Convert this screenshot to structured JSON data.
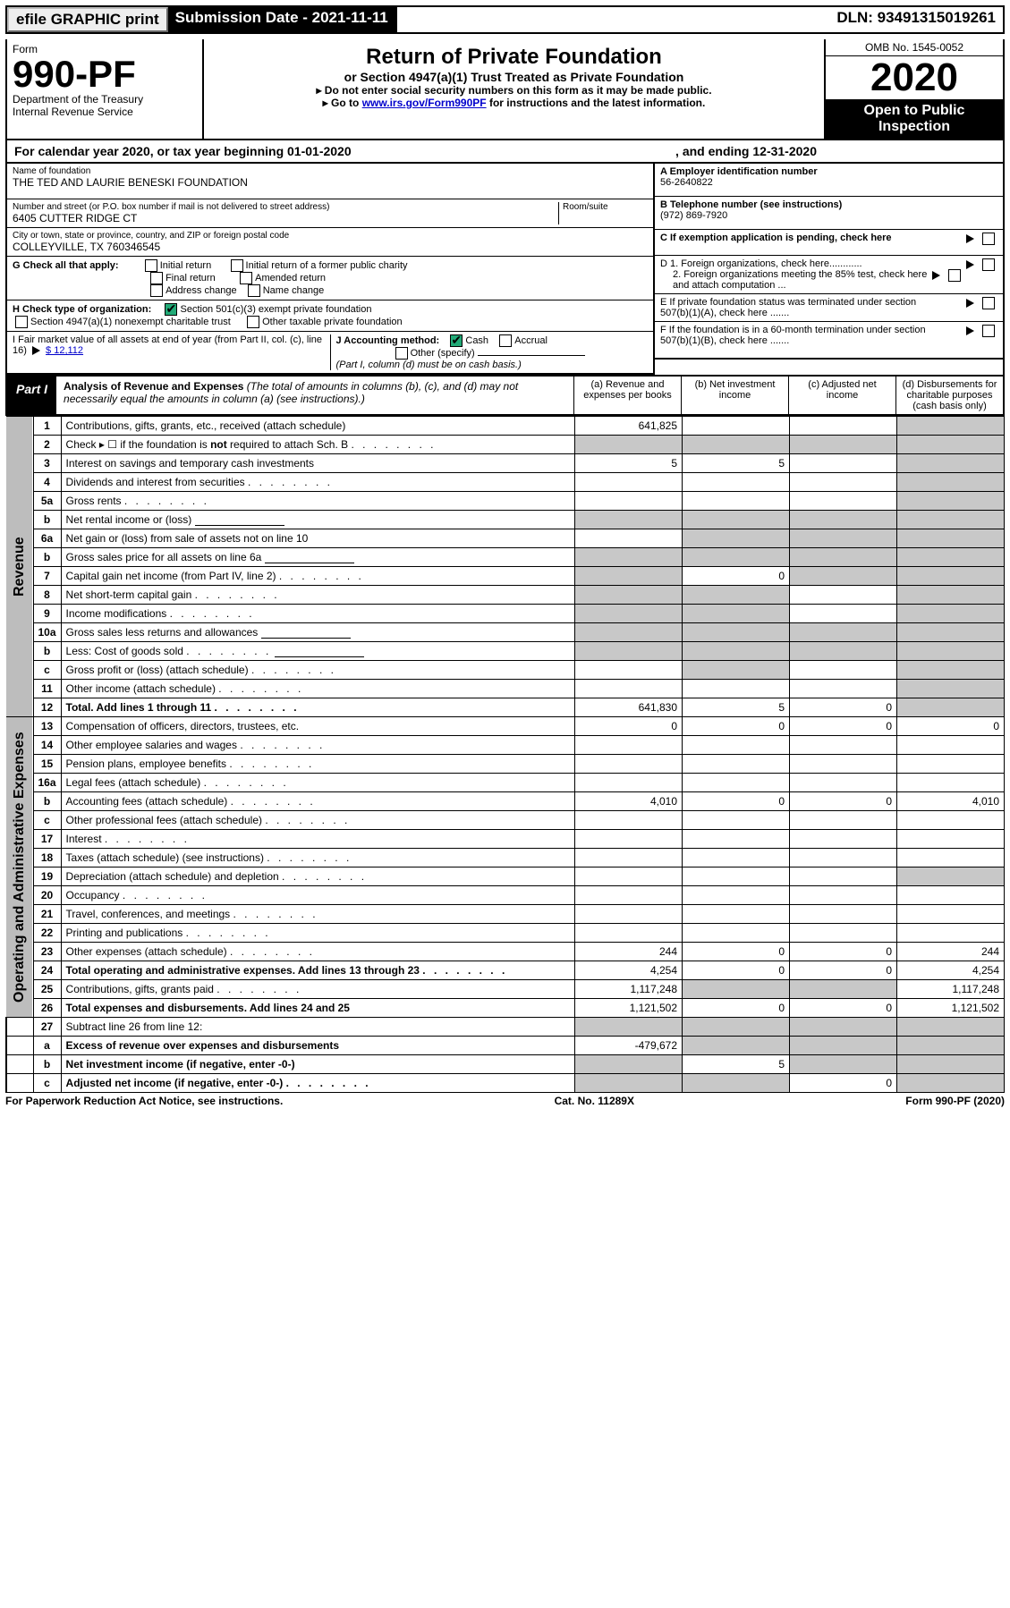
{
  "efile": {
    "label": "efile GRAPHIC print",
    "submission_label": "Submission Date - 2021-11-11",
    "dln_label": "DLN: 93491315019261"
  },
  "header": {
    "form_word": "Form",
    "form_no": "990-PF",
    "dept": "Department of the Treasury",
    "irs": "Internal Revenue Service",
    "title": "Return of Private Foundation",
    "subtitle": "or Section 4947(a)(1) Trust Treated as Private Foundation",
    "note1": "▸ Do not enter social security numbers on this form as it may be made public.",
    "note2_pre": "▸ Go to ",
    "note2_link": "www.irs.gov/Form990PF",
    "note2_post": " for instructions and the latest information.",
    "omb": "OMB No. 1545-0052",
    "year": "2020",
    "open": "Open to Public Inspection"
  },
  "calyear": {
    "text1": "For calendar year 2020, or tax year beginning 01-01-2020",
    "text2": ", and ending 12-31-2020"
  },
  "identity": {
    "name_lbl": "Name of foundation",
    "name_val": "THE TED AND LAURIE BENESKI FOUNDATION",
    "addr_lbl": "Number and street (or P.O. box number if mail is not delivered to street address)",
    "addr_val": "6405 CUTTER RIDGE CT",
    "room_lbl": "Room/suite",
    "city_lbl": "City or town, state or province, country, and ZIP or foreign postal code",
    "city_val": "COLLEYVILLE, TX  760346545",
    "ein_lbl": "A Employer identification number",
    "ein_val": "56-2640822",
    "tel_lbl": "B Telephone number (see instructions)",
    "tel_val": "(972) 869-7920",
    "c_lbl": "C If exemption application is pending, check here",
    "g_lbl": "G Check all that apply:",
    "g_opts": [
      "Initial return",
      "Final return",
      "Address change",
      "Initial return of a former public charity",
      "Amended return",
      "Name change"
    ],
    "h_lbl": "H Check type of organization:",
    "h_opt1": "Section 501(c)(3) exempt private foundation",
    "h_opt2": "Section 4947(a)(1) nonexempt charitable trust",
    "h_opt3": "Other taxable private foundation",
    "i_lbl": "I Fair market value of all assets at end of year (from Part II, col. (c), line 16)",
    "i_val": "$  12,112",
    "j_lbl": "J Accounting method:",
    "j_cash": "Cash",
    "j_accrual": "Accrual",
    "j_other": "Other (specify)",
    "j_note": "(Part I, column (d) must be on cash basis.)",
    "d1": "D 1. Foreign organizations, check here............",
    "d2": "2. Foreign organizations meeting the 85% test, check here and attach computation ...",
    "e_lbl": "E  If private foundation status was terminated under section 507(b)(1)(A), check here .......",
    "f_lbl": "F  If the foundation is in a 60-month termination under section 507(b)(1)(B), check here .......",
    "arrow": "▸"
  },
  "part1": {
    "tag": "Part I",
    "title": "Analysis of Revenue and Expenses",
    "title_note": " (The total of amounts in columns (b), (c), and (d) may not necessarily equal the amounts in column (a) (see instructions).)",
    "cols": {
      "a": "(a)   Revenue and expenses per books",
      "b": "(b)   Net investment income",
      "c": "(c)   Adjusted net income",
      "d": "(d)   Disbursements for charitable purposes (cash basis only)"
    }
  },
  "sections": {
    "revenue": "Revenue",
    "opexp": "Operating and Administrative Expenses"
  },
  "rows": [
    {
      "sec": "rev",
      "n": "1",
      "lbl": "Contributions, gifts, grants, etc., received (attach schedule)",
      "a": "641,825",
      "b": "",
      "c": "",
      "d": "",
      "sh": [
        "d"
      ]
    },
    {
      "sec": "rev",
      "n": "2",
      "lbl": "Check ▸ ☐ if the foundation is <b>not</b> required to attach Sch. B",
      "a": "",
      "b": "",
      "c": "",
      "d": "",
      "sh": [
        "a",
        "b",
        "c",
        "d"
      ],
      "dots": true
    },
    {
      "sec": "rev",
      "n": "3",
      "lbl": "Interest on savings and temporary cash investments",
      "a": "5",
      "b": "5",
      "c": "",
      "d": "",
      "sh": [
        "d"
      ]
    },
    {
      "sec": "rev",
      "n": "4",
      "lbl": "Dividends and interest from securities",
      "a": "",
      "b": "",
      "c": "",
      "d": "",
      "sh": [
        "d"
      ],
      "dots": true
    },
    {
      "sec": "rev",
      "n": "5a",
      "lbl": "Gross rents",
      "a": "",
      "b": "",
      "c": "",
      "d": "",
      "sh": [
        "d"
      ],
      "dots": true
    },
    {
      "sec": "rev",
      "n": "b",
      "lbl": "Net rental income or (loss)",
      "a": "",
      "b": "",
      "c": "",
      "d": "",
      "sh": [
        "a",
        "b",
        "c",
        "d"
      ],
      "inline": true
    },
    {
      "sec": "rev",
      "n": "6a",
      "lbl": "Net gain or (loss) from sale of assets not on line 10",
      "a": "",
      "b": "",
      "c": "",
      "d": "",
      "sh": [
        "b",
        "c",
        "d"
      ]
    },
    {
      "sec": "rev",
      "n": "b",
      "lbl": "Gross sales price for all assets on line 6a",
      "a": "",
      "b": "",
      "c": "",
      "d": "",
      "sh": [
        "a",
        "b",
        "c",
        "d"
      ],
      "inline": true
    },
    {
      "sec": "rev",
      "n": "7",
      "lbl": "Capital gain net income (from Part IV, line 2)",
      "a": "",
      "b": "0",
      "c": "",
      "d": "",
      "sh": [
        "a",
        "c",
        "d"
      ],
      "dots": true
    },
    {
      "sec": "rev",
      "n": "8",
      "lbl": "Net short-term capital gain",
      "a": "",
      "b": "",
      "c": "",
      "d": "",
      "sh": [
        "a",
        "b",
        "d"
      ],
      "dots": true
    },
    {
      "sec": "rev",
      "n": "9",
      "lbl": "Income modifications",
      "a": "",
      "b": "",
      "c": "",
      "d": "",
      "sh": [
        "a",
        "b",
        "d"
      ],
      "dots": true
    },
    {
      "sec": "rev",
      "n": "10a",
      "lbl": "Gross sales less returns and allowances",
      "a": "",
      "b": "",
      "c": "",
      "d": "",
      "sh": [
        "a",
        "b",
        "c",
        "d"
      ],
      "inline": true
    },
    {
      "sec": "rev",
      "n": "b",
      "lbl": "Less: Cost of goods sold",
      "a": "",
      "b": "",
      "c": "",
      "d": "",
      "sh": [
        "a",
        "b",
        "c",
        "d"
      ],
      "inline": true,
      "dots": true
    },
    {
      "sec": "rev",
      "n": "c",
      "lbl": "Gross profit or (loss) (attach schedule)",
      "a": "",
      "b": "",
      "c": "",
      "d": "",
      "sh": [
        "b",
        "d"
      ],
      "dots": true
    },
    {
      "sec": "rev",
      "n": "11",
      "lbl": "Other income (attach schedule)",
      "a": "",
      "b": "",
      "c": "",
      "d": "",
      "sh": [
        "d"
      ],
      "dots": true
    },
    {
      "sec": "rev",
      "n": "12",
      "lbl": "<b>Total.</b> Add lines 1 through 11",
      "a": "641,830",
      "b": "5",
      "c": "0",
      "d": "",
      "sh": [
        "d"
      ],
      "dots": true,
      "bold": true
    },
    {
      "sec": "op",
      "n": "13",
      "lbl": "Compensation of officers, directors, trustees, etc.",
      "a": "0",
      "b": "0",
      "c": "0",
      "d": "0"
    },
    {
      "sec": "op",
      "n": "14",
      "lbl": "Other employee salaries and wages",
      "a": "",
      "b": "",
      "c": "",
      "d": "",
      "dots": true
    },
    {
      "sec": "op",
      "n": "15",
      "lbl": "Pension plans, employee benefits",
      "a": "",
      "b": "",
      "c": "",
      "d": "",
      "dots": true
    },
    {
      "sec": "op",
      "n": "16a",
      "lbl": "Legal fees (attach schedule)",
      "a": "",
      "b": "",
      "c": "",
      "d": "",
      "dots": true
    },
    {
      "sec": "op",
      "n": "b",
      "lbl": "Accounting fees (attach schedule)",
      "a": "4,010",
      "b": "0",
      "c": "0",
      "d": "4,010",
      "dots": true
    },
    {
      "sec": "op",
      "n": "c",
      "lbl": "Other professional fees (attach schedule)",
      "a": "",
      "b": "",
      "c": "",
      "d": "",
      "dots": true
    },
    {
      "sec": "op",
      "n": "17",
      "lbl": "Interest",
      "a": "",
      "b": "",
      "c": "",
      "d": "",
      "dots": true
    },
    {
      "sec": "op",
      "n": "18",
      "lbl": "Taxes (attach schedule) (see instructions)",
      "a": "",
      "b": "",
      "c": "",
      "d": "",
      "dots": true
    },
    {
      "sec": "op",
      "n": "19",
      "lbl": "Depreciation (attach schedule) and depletion",
      "a": "",
      "b": "",
      "c": "",
      "d": "",
      "sh": [
        "d"
      ],
      "dots": true
    },
    {
      "sec": "op",
      "n": "20",
      "lbl": "Occupancy",
      "a": "",
      "b": "",
      "c": "",
      "d": "",
      "dots": true
    },
    {
      "sec": "op",
      "n": "21",
      "lbl": "Travel, conferences, and meetings",
      "a": "",
      "b": "",
      "c": "",
      "d": "",
      "dots": true
    },
    {
      "sec": "op",
      "n": "22",
      "lbl": "Printing and publications",
      "a": "",
      "b": "",
      "c": "",
      "d": "",
      "dots": true
    },
    {
      "sec": "op",
      "n": "23",
      "lbl": "Other expenses (attach schedule)",
      "a": "244",
      "b": "0",
      "c": "0",
      "d": "244",
      "dots": true
    },
    {
      "sec": "op",
      "n": "24",
      "lbl": "<b>Total operating and administrative expenses.</b> Add lines 13 through 23",
      "a": "4,254",
      "b": "0",
      "c": "0",
      "d": "4,254",
      "dots": true,
      "bold": true
    },
    {
      "sec": "op",
      "n": "25",
      "lbl": "Contributions, gifts, grants paid",
      "a": "1,117,248",
      "b": "",
      "c": "",
      "d": "1,117,248",
      "sh": [
        "b",
        "c"
      ],
      "dots": true
    },
    {
      "sec": "op",
      "n": "26",
      "lbl": "<b>Total expenses and disbursements.</b> Add lines 24 and 25",
      "a": "1,121,502",
      "b": "0",
      "c": "0",
      "d": "1,121,502",
      "bold": true
    },
    {
      "sec": "none",
      "n": "27",
      "lbl": "Subtract line 26 from line 12:",
      "a": "",
      "b": "",
      "c": "",
      "d": "",
      "sh": [
        "a",
        "b",
        "c",
        "d"
      ]
    },
    {
      "sec": "none",
      "n": "a",
      "lbl": "<b>Excess of revenue over expenses and disbursements</b>",
      "a": "-479,672",
      "b": "",
      "c": "",
      "d": "",
      "sh": [
        "b",
        "c",
        "d"
      ],
      "bold": true
    },
    {
      "sec": "none",
      "n": "b",
      "lbl": "<b>Net investment income</b> (if negative, enter -0-)",
      "a": "",
      "b": "5",
      "c": "",
      "d": "",
      "sh": [
        "a",
        "c",
        "d"
      ],
      "bold": true
    },
    {
      "sec": "none",
      "n": "c",
      "lbl": "<b>Adjusted net income</b> (if negative, enter -0-)",
      "a": "",
      "b": "",
      "c": "0",
      "d": "",
      "sh": [
        "a",
        "b",
        "d"
      ],
      "bold": true,
      "dots": true
    }
  ],
  "footer": {
    "left": "For Paperwork Reduction Act Notice, see instructions.",
    "mid": "Cat. No. 11289X",
    "right": "Form 990-PF (2020)"
  },
  "colors": {
    "shade": "#c8c8c8",
    "section_bg": "#bdbdbd",
    "link": "#0000cc",
    "check_on": "#22aa77"
  }
}
